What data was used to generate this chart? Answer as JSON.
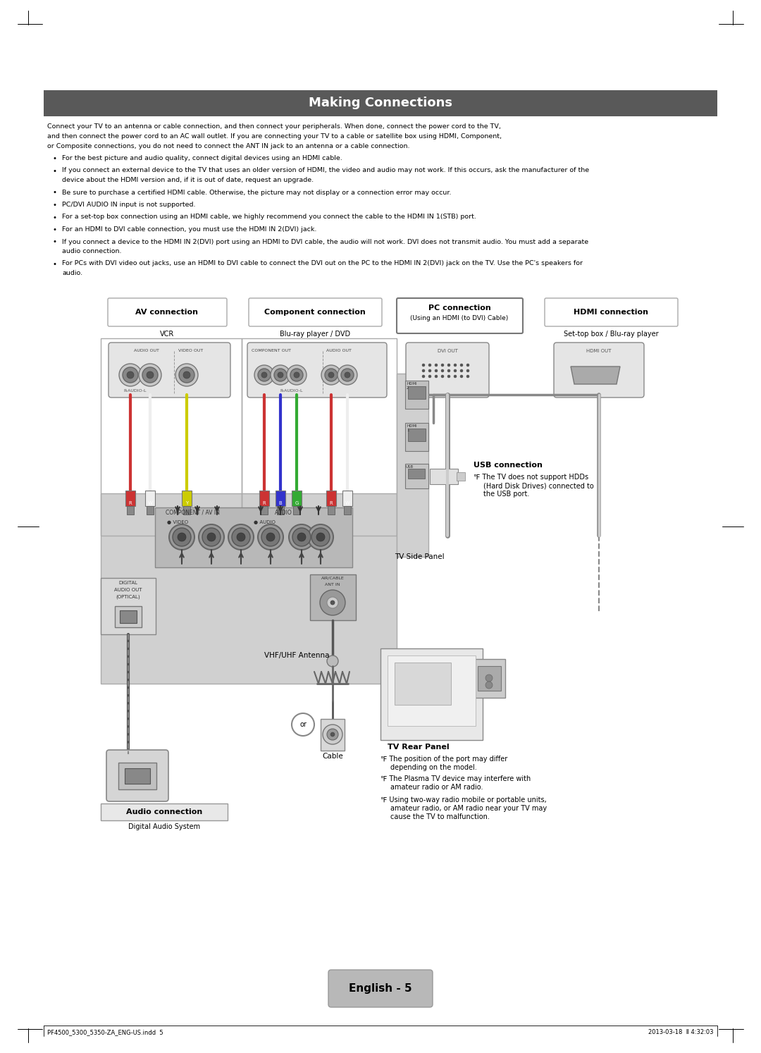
{
  "page_bg": "#ffffff",
  "title_bg": "#595959",
  "title_text": "Making Connections",
  "title_color": "#ffffff",
  "title_fontsize": 12,
  "page_number": "English - 5",
  "footer_left": "PF4500_5300_5350-ZA_ENG-US.indd  5",
  "footer_right": "2013-03-18  Ⅱ 4:32:03",
  "header_lines": [
    "Connect your TV to an antenna or cable connection, and then connect your peripherals. When done, connect the power cord to the TV,",
    "and then connect the power cord to an AC wall outlet. If you are connecting your TV to a cable or satellite box using HDMI, Component,",
    "or Composite connections, you do not need to connect the ANT IN jack to an antenna or a cable connection."
  ],
  "bullet_items": [
    "For the best picture and audio quality, connect digital devices using an HDMI cable.",
    "If you connect an external device to the TV that uses an older version of HDMI, the video and audio may not work. If this occurs, ask the manufacturer of the\n  device about the HDMI version and, if it is out of date, request an upgrade.",
    "Be sure to purchase a certified HDMI cable. Otherwise, the picture may not display or a connection error may occur.",
    "PC/DVI AUDIO IN input is not supported.",
    "For a set-top box connection using an HDMI cable, we highly recommend you connect the cable to the HDMI IN 1(STB) port.",
    "For an HDMI to DVI cable connection, you must use the HDMI IN 2(DVI) jack.",
    "If you connect a device to the HDMI IN 2(DVI) port using an HDMI to DVI cable, the audio will not work. DVI does not transmit audio. You must add a separate\n  audio connection.",
    "For PCs with DVI video out jacks, use an HDMI to DVI cable to connect the DVI out on the PC to the HDMI IN 2(DVI) jack on the TV. Use the PC's speakers for\n  audio."
  ]
}
